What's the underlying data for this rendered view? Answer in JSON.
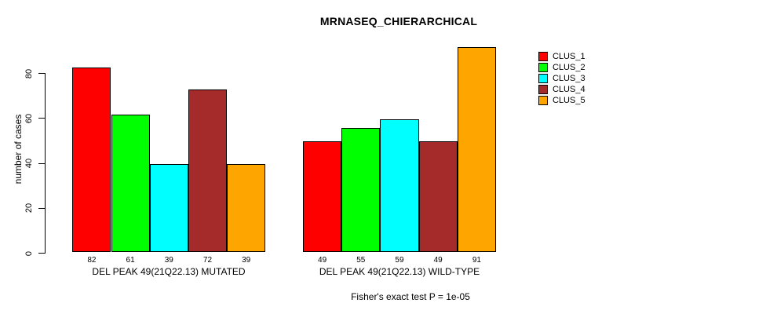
{
  "chart_data": {
    "type": "bar",
    "title": "MRNASEQ_CHIERARCHICAL",
    "ylabel": "number of cases",
    "yticks": [
      0,
      20,
      40,
      60,
      80
    ],
    "ylim": [
      0,
      93
    ],
    "grid": false,
    "legend_position": "topright",
    "bar_value_labels": true,
    "groups": [
      {
        "label": "DEL PEAK 49(21Q22.13) MUTATED",
        "values": [
          82,
          61,
          39,
          72,
          39
        ]
      },
      {
        "label": "DEL PEAK 49(21Q22.13) WILD-TYPE",
        "values": [
          49,
          55,
          59,
          49,
          91
        ]
      }
    ],
    "series": [
      {
        "name": "CLUS_1",
        "color": "#ff0000"
      },
      {
        "name": "CLUS_2",
        "color": "#00ff00"
      },
      {
        "name": "CLUS_3",
        "color": "#00ffff"
      },
      {
        "name": "CLUS_4",
        "color": "#a52a2a"
      },
      {
        "name": "CLUS_5",
        "color": "#ffa500"
      }
    ],
    "note": "Fisher's exact test P = 1e-05"
  },
  "colors": {
    "background": "#ffffff",
    "axis": "#000000",
    "text": "#000000"
  }
}
